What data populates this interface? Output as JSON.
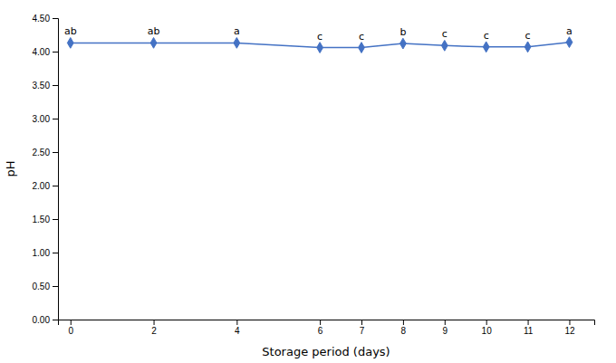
{
  "chart_data": {
    "type": "line",
    "x": [
      0,
      2,
      4,
      6,
      7,
      8,
      9,
      10,
      11,
      12
    ],
    "values": [
      4.13,
      4.13,
      4.13,
      4.06,
      4.06,
      4.12,
      4.09,
      4.07,
      4.07,
      4.14
    ],
    "annotations": [
      "ab",
      "ab",
      "a",
      "c",
      "c",
      "b",
      "c",
      "c",
      "c",
      "a"
    ],
    "color": "#4472C4",
    "marker": "diamond",
    "xlabel": "Storage period (days)",
    "ylabel": "pH",
    "xlim": [
      -0.3,
      12.6
    ],
    "ylim": [
      0.0,
      4.5
    ],
    "xticks": [
      0,
      2,
      4,
      6,
      7,
      8,
      9,
      10,
      11,
      12
    ],
    "yticks": [
      {
        "value": 0.0,
        "label": "0.00"
      },
      {
        "value": 0.5,
        "label": "0.50"
      },
      {
        "value": 1.0,
        "label": "1.00"
      },
      {
        "value": 1.5,
        "label": "1.50"
      },
      {
        "value": 2.0,
        "label": "2.00"
      },
      {
        "value": 2.5,
        "label": "2.50"
      },
      {
        "value": 3.0,
        "label": "3.00"
      },
      {
        "value": 3.5,
        "label": "3.50"
      },
      {
        "value": 4.0,
        "label": "4.00"
      },
      {
        "value": 4.5,
        "label": "4.50"
      }
    ],
    "grid": false
  }
}
